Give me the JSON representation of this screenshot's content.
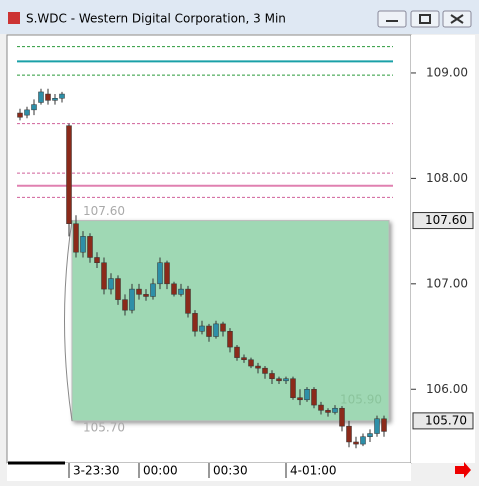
{
  "chart_data": {
    "type": "candlestick",
    "title": "S.WDC - Western Digital Corporation, 3 Min",
    "categories": [
      null,
      null,
      null,
      null,
      null,
      null,
      null,
      "3-23:30",
      null,
      null,
      null,
      null,
      null,
      null,
      null,
      null,
      null,
      "00:00",
      null,
      null,
      null,
      null,
      null,
      null,
      null,
      null,
      null,
      "00:30",
      null,
      null,
      null,
      null,
      null,
      null,
      null,
      null,
      null,
      null,
      "4-01:00",
      null,
      null,
      null,
      null,
      null,
      null,
      null,
      null,
      null,
      null,
      null,
      null,
      null,
      null
    ],
    "open": [
      108.62,
      108.6,
      108.65,
      108.72,
      108.8,
      108.74,
      108.76,
      108.5,
      107.57,
      107.3,
      107.45,
      107.25,
      107.2,
      106.95,
      107.05,
      106.85,
      106.75,
      106.95,
      106.9,
      106.88,
      107.0,
      107.2,
      107.0,
      106.9,
      106.95,
      106.72,
      106.55,
      106.6,
      106.5,
      106.62,
      106.55,
      106.4,
      106.3,
      106.28,
      106.22,
      106.2,
      106.15,
      106.1,
      106.08,
      106.1,
      105.92,
      105.9,
      106.0,
      105.85,
      105.8,
      105.78,
      105.82,
      105.65,
      105.5,
      105.48,
      105.55,
      105.58,
      105.72
    ],
    "high": [
      108.66,
      108.68,
      108.75,
      108.85,
      108.85,
      108.8,
      108.82,
      108.52,
      107.65,
      107.5,
      107.48,
      107.3,
      107.25,
      107.1,
      107.08,
      106.9,
      107.0,
      107.0,
      106.95,
      107.05,
      107.25,
      107.22,
      107.02,
      107.0,
      106.98,
      106.75,
      106.65,
      106.62,
      106.65,
      106.64,
      106.58,
      106.42,
      106.33,
      106.3,
      106.25,
      106.22,
      106.18,
      106.12,
      106.12,
      106.12,
      106.0,
      106.02,
      106.02,
      105.88,
      105.82,
      105.85,
      105.84,
      105.7,
      105.55,
      105.58,
      105.62,
      105.75,
      105.75
    ],
    "low": [
      108.55,
      108.57,
      108.6,
      108.7,
      108.7,
      108.7,
      108.72,
      107.45,
      107.25,
      107.25,
      107.2,
      107.15,
      106.9,
      106.9,
      106.8,
      106.7,
      106.72,
      106.85,
      106.84,
      106.85,
      106.95,
      106.95,
      106.88,
      106.88,
      106.68,
      106.5,
      106.52,
      106.45,
      106.48,
      106.5,
      106.35,
      106.27,
      106.25,
      106.2,
      106.15,
      106.1,
      106.05,
      106.05,
      106.05,
      105.9,
      105.85,
      105.88,
      105.82,
      105.76,
      105.74,
      105.76,
      105.6,
      105.45,
      105.44,
      105.46,
      105.5,
      105.55,
      105.55
    ],
    "close": [
      108.58,
      108.65,
      108.7,
      108.82,
      108.74,
      108.76,
      108.8,
      107.57,
      107.3,
      107.45,
      107.25,
      107.2,
      106.95,
      107.05,
      106.85,
      106.75,
      106.95,
      106.9,
      106.88,
      107.0,
      107.2,
      107.0,
      106.9,
      106.95,
      106.72,
      106.55,
      106.6,
      106.5,
      106.62,
      106.55,
      106.4,
      106.3,
      106.28,
      106.22,
      106.2,
      106.15,
      106.1,
      106.08,
      106.1,
      105.92,
      105.9,
      106.0,
      105.85,
      105.8,
      105.78,
      105.82,
      105.65,
      105.5,
      105.48,
      105.55,
      105.58,
      105.72,
      105.6
    ],
    "up_color": "#2e8fa8",
    "down_color": "#8b2a1a",
    "ylim": [
      105.31,
      109.36
    ],
    "yticks": [
      {
        "value": 109,
        "label": "109.00"
      },
      {
        "value": 108,
        "label": "108.00"
      },
      {
        "value": 107,
        "label": "107.00"
      },
      {
        "value": 106,
        "label": "106.00"
      }
    ],
    "hlines": [
      {
        "value": 109.25,
        "color": "#2a9a3a",
        "dash": true
      },
      {
        "value": 109.11,
        "color": "#1aa0a8",
        "dash": false
      },
      {
        "value": 108.98,
        "color": "#2a9a3a",
        "dash": true
      },
      {
        "value": 108.52,
        "color": "#d0609a",
        "dash": true
      },
      {
        "value": 108.05,
        "color": "#d0609a",
        "dash": true
      },
      {
        "value": 107.93,
        "color": "#e080b0",
        "dash": false
      },
      {
        "value": 107.82,
        "color": "#d0609a",
        "dash": true
      }
    ],
    "zone": {
      "top": 107.6,
      "bottom": 105.7,
      "from": 7,
      "to": 52,
      "color": "#9fd8b4",
      "top_label": "107.60",
      "bottom_label": "105.70"
    },
    "annotation": {
      "value": 105.9,
      "label": "105.90"
    },
    "price_markers": [
      {
        "value": 107.6,
        "label": "107.60"
      },
      {
        "value": 105.7,
        "label": "105.70"
      }
    ]
  }
}
